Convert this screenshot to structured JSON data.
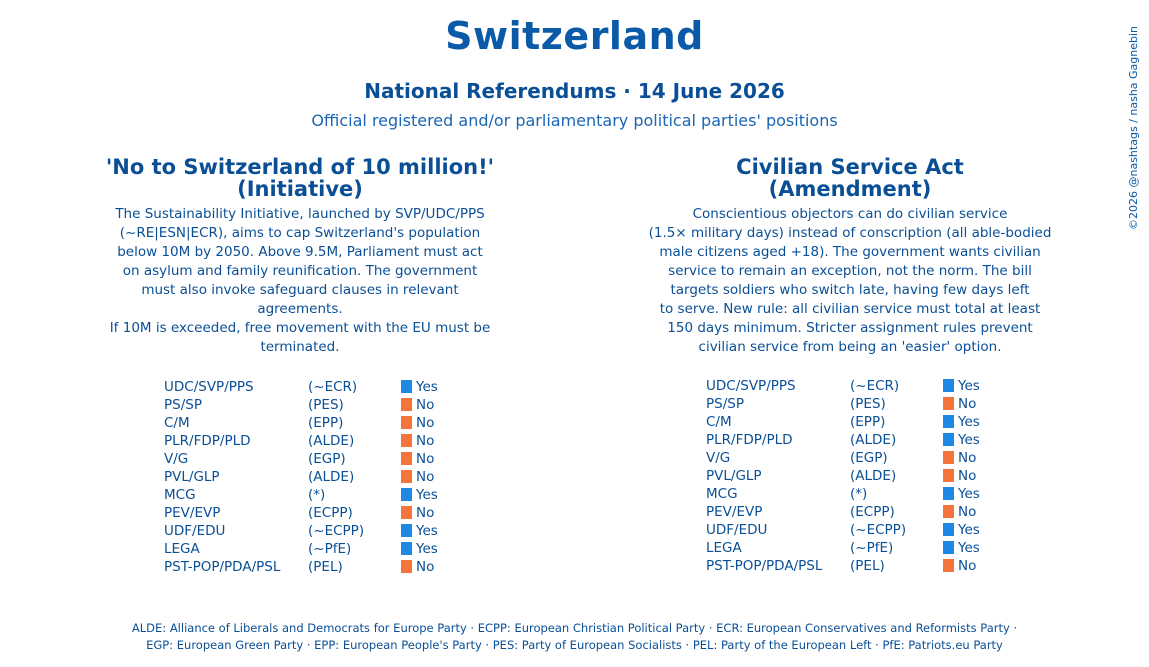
{
  "header": {
    "title": "Switzerland",
    "subtitle": "National Referendums · 14 June 2026",
    "subsubtitle": "Official registered and/or parliamentary political parties' positions",
    "credit": "©2026 @nashtags / nasha Gagnebin"
  },
  "colors": {
    "yes": "#1e88e5",
    "no": "#f4743b"
  },
  "referendums": [
    {
      "title_line1": "'No to Switzerland of 10 million!'",
      "title_line2": "(Initiative)",
      "description": [
        "The Sustainability Initiative, launched by SVP/UDC/PPS",
        "(~RE|ESN|ECR), aims to cap Switzerland's population",
        "below 10M by 2050. Above 9.5M, Parliament must act",
        "on asylum and family reunification. The government",
        "must also invoke safeguard clauses in relevant agreements.",
        "If 10M is exceeded, free movement with the EU must be",
        "terminated."
      ],
      "rows": [
        {
          "party": "UDC/SVP/PPS",
          "group": "(~ECR)",
          "position": "Yes"
        },
        {
          "party": "PS/SP",
          "group": "(PES)",
          "position": "No"
        },
        {
          "party": "C/M",
          "group": "(EPP)",
          "position": "No"
        },
        {
          "party": "PLR/FDP/PLD",
          "group": "(ALDE)",
          "position": "No"
        },
        {
          "party": "V/G",
          "group": "(EGP)",
          "position": "No"
        },
        {
          "party": "PVL/GLP",
          "group": "(ALDE)",
          "position": "No"
        },
        {
          "party": "MCG",
          "group": "(*)",
          "position": "Yes"
        },
        {
          "party": "PEV/EVP",
          "group": "(ECPP)",
          "position": "No"
        },
        {
          "party": "UDF/EDU",
          "group": "(~ECPP)",
          "position": "Yes"
        },
        {
          "party": "LEGA",
          "group": "(~PfE)",
          "position": "Yes"
        },
        {
          "party": "PST-POP/PDA/PSL",
          "group": "(PEL)",
          "position": "No"
        }
      ]
    },
    {
      "title_line1": "Civilian Service Act",
      "title_line2": "(Amendment)",
      "description": [
        "Conscientious objectors can do civilian service",
        "(1.5× military days) instead of conscription (all able-bodied",
        "male citizens aged +18). The government wants civilian",
        "service to remain an exception, not the norm. The bill",
        "targets soldiers who switch late, having few days left",
        "to serve. New rule: all civilian service must total at least",
        "150 days minimum. Stricter assignment rules prevent",
        "civilian service from being an 'easier' option."
      ],
      "rows": [
        {
          "party": "UDC/SVP/PPS",
          "group": "(~ECR)",
          "position": "Yes"
        },
        {
          "party": "PS/SP",
          "group": "(PES)",
          "position": "No"
        },
        {
          "party": "C/M",
          "group": "(EPP)",
          "position": "Yes"
        },
        {
          "party": "PLR/FDP/PLD",
          "group": "(ALDE)",
          "position": "Yes"
        },
        {
          "party": "V/G",
          "group": "(EGP)",
          "position": "No"
        },
        {
          "party": "PVL/GLP",
          "group": "(ALDE)",
          "position": "No"
        },
        {
          "party": "MCG",
          "group": "(*)",
          "position": "Yes"
        },
        {
          "party": "PEV/EVP",
          "group": "(ECPP)",
          "position": "No"
        },
        {
          "party": "UDF/EDU",
          "group": "(~ECPP)",
          "position": "Yes"
        },
        {
          "party": "LEGA",
          "group": "(~PfE)",
          "position": "Yes"
        },
        {
          "party": "PST-POP/PDA/PSL",
          "group": "(PEL)",
          "position": "No"
        }
      ]
    }
  ],
  "footer": {
    "line1": "ALDE: Alliance of Liberals and Democrats for Europe Party · ECPP: European Christian Political Party ·  ECR: European Conservatives and Reformists Party ·",
    "line2": "EGP: European Green Party · EPP: European People's Party · PES: Party of European Socialists · PEL: Party of the European Left · PfE: Patriots.eu Party"
  }
}
